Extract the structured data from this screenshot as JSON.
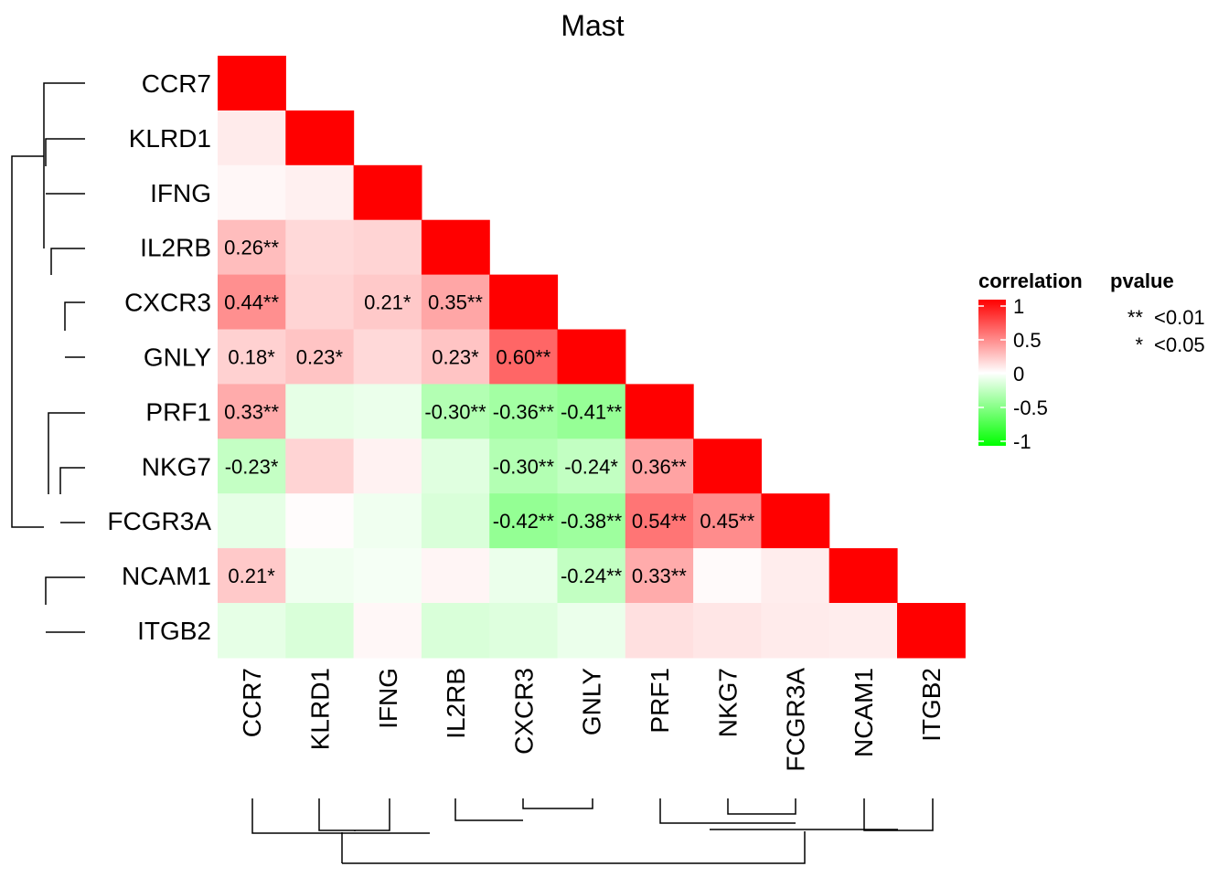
{
  "chart_data": {
    "type": "heatmap",
    "title": "Mast",
    "genes": [
      "CCR7",
      "KLRD1",
      "IFNG",
      "IL2RB",
      "CXCR3",
      "GNLY",
      "PRF1",
      "NKG7",
      "FCGR3A",
      "NCAM1",
      "ITGB2"
    ],
    "cells": [
      {
        "row": "CCR7",
        "col": "CCR7",
        "value": 1,
        "label": ""
      },
      {
        "row": "KLRD1",
        "col": "CCR7",
        "value": 0.08,
        "label": ""
      },
      {
        "row": "KLRD1",
        "col": "KLRD1",
        "value": 1,
        "label": ""
      },
      {
        "row": "IFNG",
        "col": "CCR7",
        "value": 0.03,
        "label": ""
      },
      {
        "row": "IFNG",
        "col": "KLRD1",
        "value": 0.06,
        "label": ""
      },
      {
        "row": "IFNG",
        "col": "IFNG",
        "value": 1,
        "label": ""
      },
      {
        "row": "IL2RB",
        "col": "CCR7",
        "value": 0.26,
        "label": "0.26**"
      },
      {
        "row": "IL2RB",
        "col": "KLRD1",
        "value": 0.15,
        "label": ""
      },
      {
        "row": "IL2RB",
        "col": "IFNG",
        "value": 0.17,
        "label": ""
      },
      {
        "row": "IL2RB",
        "col": "IL2RB",
        "value": 1,
        "label": ""
      },
      {
        "row": "CXCR3",
        "col": "CCR7",
        "value": 0.44,
        "label": "0.44**"
      },
      {
        "row": "CXCR3",
        "col": "KLRD1",
        "value": 0.17,
        "label": ""
      },
      {
        "row": "CXCR3",
        "col": "IFNG",
        "value": 0.21,
        "label": "0.21*"
      },
      {
        "row": "CXCR3",
        "col": "IL2RB",
        "value": 0.35,
        "label": "0.35**"
      },
      {
        "row": "CXCR3",
        "col": "CXCR3",
        "value": 1,
        "label": ""
      },
      {
        "row": "GNLY",
        "col": "CCR7",
        "value": 0.18,
        "label": "0.18*"
      },
      {
        "row": "GNLY",
        "col": "KLRD1",
        "value": 0.23,
        "label": "0.23*"
      },
      {
        "row": "GNLY",
        "col": "IFNG",
        "value": 0.15,
        "label": ""
      },
      {
        "row": "GNLY",
        "col": "IL2RB",
        "value": 0.23,
        "label": "0.23*"
      },
      {
        "row": "GNLY",
        "col": "CXCR3",
        "value": 0.6,
        "label": "0.60**"
      },
      {
        "row": "GNLY",
        "col": "GNLY",
        "value": 1,
        "label": ""
      },
      {
        "row": "PRF1",
        "col": "CCR7",
        "value": 0.33,
        "label": "0.33**"
      },
      {
        "row": "PRF1",
        "col": "KLRD1",
        "value": -0.1,
        "label": ""
      },
      {
        "row": "PRF1",
        "col": "IFNG",
        "value": -0.08,
        "label": ""
      },
      {
        "row": "PRF1",
        "col": "IL2RB",
        "value": -0.3,
        "label": "-0.30**"
      },
      {
        "row": "PRF1",
        "col": "CXCR3",
        "value": -0.36,
        "label": "-0.36**"
      },
      {
        "row": "PRF1",
        "col": "GNLY",
        "value": -0.41,
        "label": "-0.41**"
      },
      {
        "row": "PRF1",
        "col": "PRF1",
        "value": 1,
        "label": ""
      },
      {
        "row": "NKG7",
        "col": "CCR7",
        "value": -0.23,
        "label": "-0.23*"
      },
      {
        "row": "NKG7",
        "col": "KLRD1",
        "value": 0.17,
        "label": ""
      },
      {
        "row": "NKG7",
        "col": "IFNG",
        "value": 0.05,
        "label": ""
      },
      {
        "row": "NKG7",
        "col": "IL2RB",
        "value": -0.12,
        "label": ""
      },
      {
        "row": "NKG7",
        "col": "CXCR3",
        "value": -0.3,
        "label": "-0.30**"
      },
      {
        "row": "NKG7",
        "col": "GNLY",
        "value": -0.24,
        "label": "-0.24*"
      },
      {
        "row": "NKG7",
        "col": "PRF1",
        "value": 0.36,
        "label": "0.36**"
      },
      {
        "row": "NKG7",
        "col": "NKG7",
        "value": 1,
        "label": ""
      },
      {
        "row": "FCGR3A",
        "col": "CCR7",
        "value": -0.1,
        "label": ""
      },
      {
        "row": "FCGR3A",
        "col": "KLRD1",
        "value": 0.01,
        "label": ""
      },
      {
        "row": "FCGR3A",
        "col": "IFNG",
        "value": -0.06,
        "label": ""
      },
      {
        "row": "FCGR3A",
        "col": "IL2RB",
        "value": -0.15,
        "label": ""
      },
      {
        "row": "FCGR3A",
        "col": "CXCR3",
        "value": -0.42,
        "label": "-0.42**"
      },
      {
        "row": "FCGR3A",
        "col": "GNLY",
        "value": -0.38,
        "label": "-0.38**"
      },
      {
        "row": "FCGR3A",
        "col": "PRF1",
        "value": 0.54,
        "label": "0.54**"
      },
      {
        "row": "FCGR3A",
        "col": "NKG7",
        "value": 0.45,
        "label": "0.45**"
      },
      {
        "row": "FCGR3A",
        "col": "FCGR3A",
        "value": 1,
        "label": ""
      },
      {
        "row": "NCAM1",
        "col": "CCR7",
        "value": 0.21,
        "label": "0.21*"
      },
      {
        "row": "NCAM1",
        "col": "KLRD1",
        "value": -0.06,
        "label": ""
      },
      {
        "row": "NCAM1",
        "col": "IFNG",
        "value": -0.04,
        "label": ""
      },
      {
        "row": "NCAM1",
        "col": "IL2RB",
        "value": 0.04,
        "label": ""
      },
      {
        "row": "NCAM1",
        "col": "CXCR3",
        "value": -0.08,
        "label": ""
      },
      {
        "row": "NCAM1",
        "col": "GNLY",
        "value": -0.24,
        "label": "-0.24**"
      },
      {
        "row": "NCAM1",
        "col": "PRF1",
        "value": 0.33,
        "label": "0.33**"
      },
      {
        "row": "NCAM1",
        "col": "NKG7",
        "value": 0.02,
        "label": ""
      },
      {
        "row": "NCAM1",
        "col": "FCGR3A",
        "value": 0.07,
        "label": ""
      },
      {
        "row": "NCAM1",
        "col": "NCAM1",
        "value": 1,
        "label": ""
      },
      {
        "row": "ITGB2",
        "col": "CCR7",
        "value": -0.1,
        "label": ""
      },
      {
        "row": "ITGB2",
        "col": "KLRD1",
        "value": -0.15,
        "label": ""
      },
      {
        "row": "ITGB2",
        "col": "IFNG",
        "value": 0.03,
        "label": ""
      },
      {
        "row": "ITGB2",
        "col": "IL2RB",
        "value": -0.15,
        "label": ""
      },
      {
        "row": "ITGB2",
        "col": "CXCR3",
        "value": -0.13,
        "label": ""
      },
      {
        "row": "ITGB2",
        "col": "GNLY",
        "value": -0.08,
        "label": ""
      },
      {
        "row": "ITGB2",
        "col": "PRF1",
        "value": 0.12,
        "label": ""
      },
      {
        "row": "ITGB2",
        "col": "NKG7",
        "value": 0.1,
        "label": ""
      },
      {
        "row": "ITGB2",
        "col": "FCGR3A",
        "value": 0.08,
        "label": ""
      },
      {
        "row": "ITGB2",
        "col": "NCAM1",
        "value": 0.07,
        "label": ""
      },
      {
        "row": "ITGB2",
        "col": "ITGB2",
        "value": 1,
        "label": ""
      }
    ],
    "color_scale": {
      "low": "#00ff00",
      "mid": "#ffffff",
      "high": "#ff0000",
      "limits": [
        -1,
        1
      ]
    },
    "legend": {
      "title": "correlation",
      "breaks": [
        1,
        0.5,
        0,
        -0.5,
        -1
      ],
      "break_labels": [
        "1",
        "0.5",
        "0",
        "-0.5",
        "-1"
      ],
      "placement": "right"
    },
    "pvalue_legend": {
      "title": "pvalue",
      "entries": [
        {
          "symbol": "**",
          "label": "<0.01"
        },
        {
          "symbol": "*",
          "label": "<0.05"
        }
      ]
    }
  }
}
